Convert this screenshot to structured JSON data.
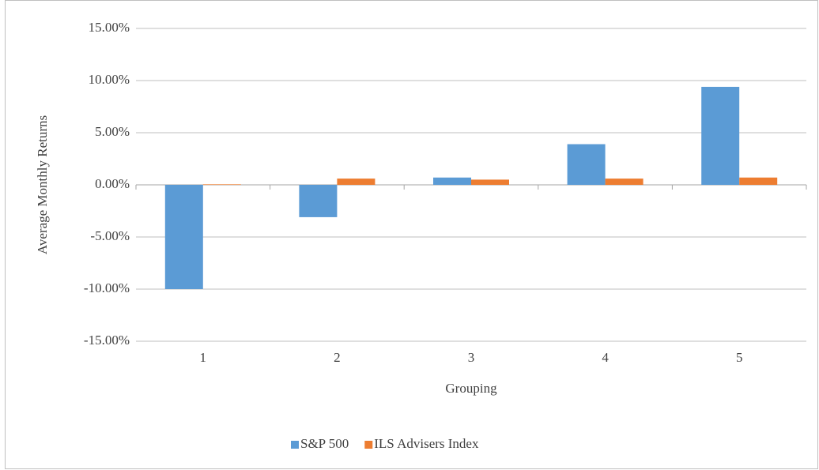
{
  "chart_data": {
    "type": "bar",
    "y_label": "Average Monthly Returns",
    "x_label": "Grouping",
    "categories": [
      "1",
      "2",
      "3",
      "4",
      "5"
    ],
    "series": [
      {
        "name": "S&P 500",
        "color": "#5b9bd5",
        "values": [
          -10.0,
          -3.1,
          0.7,
          3.9,
          9.4
        ]
      },
      {
        "name": "ILS Advisers Index",
        "color": "#ed7d31",
        "values": [
          0.05,
          0.6,
          0.5,
          0.6,
          0.7
        ]
      }
    ],
    "ylim": [
      -15,
      15
    ],
    "yticks": [
      {
        "value": 15,
        "label": "15.00%"
      },
      {
        "value": 10,
        "label": "10.00%"
      },
      {
        "value": 5,
        "label": "5.00%"
      },
      {
        "value": 0,
        "label": "0.00%"
      },
      {
        "value": -5,
        "label": "-5.00%"
      },
      {
        "value": -10,
        "label": "-10.00%"
      },
      {
        "value": -15,
        "label": "-15.00%"
      }
    ],
    "grid": true,
    "legend": "bottom"
  }
}
